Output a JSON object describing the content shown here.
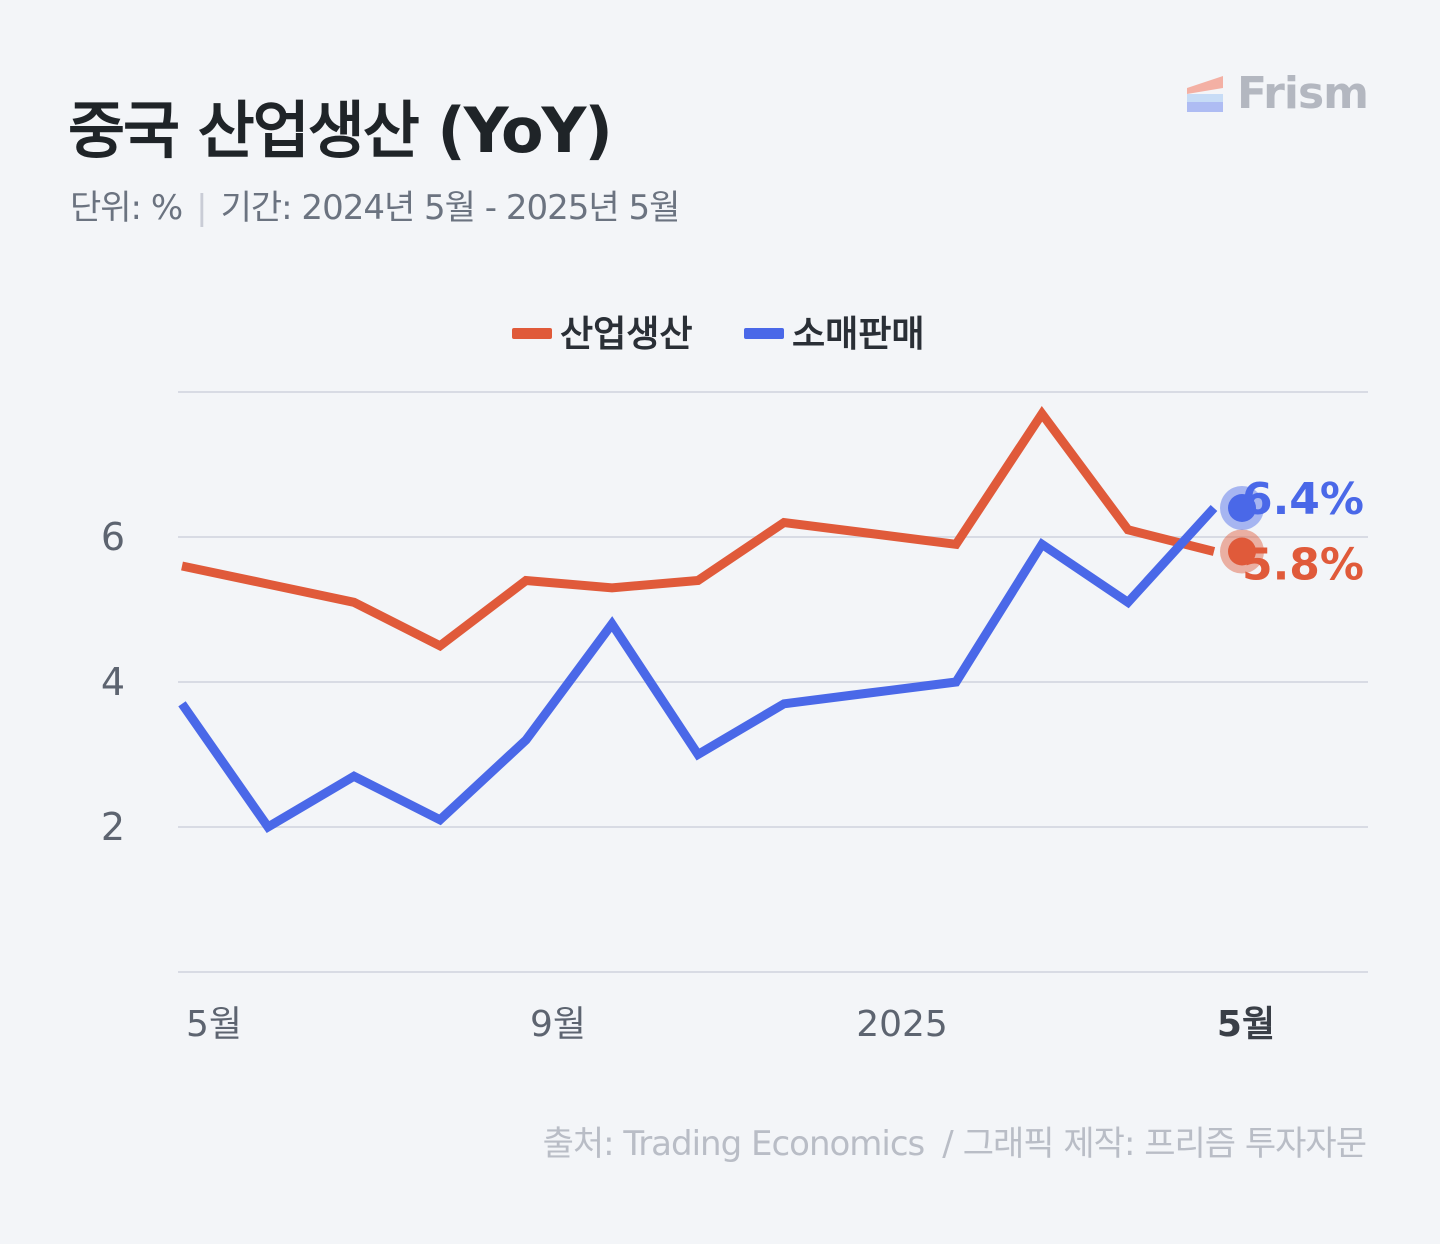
{
  "header": {
    "title": "중국 산업생산 (YoY)",
    "unit": "단위: %",
    "period": "기간: 2024년 5월 - 2025년 5월"
  },
  "brand": {
    "name": "Frism"
  },
  "footer": {
    "source": "출처: Trading Economics",
    "credit": "그래픽 제작: 프리즘 투자자문"
  },
  "chart_data": {
    "type": "line",
    "x": [
      "2024-05",
      "2024-06",
      "2024-07",
      "2024-08",
      "2024-09",
      "2024-10",
      "2024-11",
      "2024-12",
      "2025-01",
      "2025-02",
      "2025-03",
      "2025-04",
      "2025-05"
    ],
    "x_tick_labels": [
      {
        "x": "2024-05",
        "label": "5월"
      },
      {
        "x": "2024-09",
        "label": "9월"
      },
      {
        "x": "2025-01",
        "label": "2025"
      },
      {
        "x": "2025-05",
        "label": "5월",
        "bold": true
      }
    ],
    "y_ticks": [
      2,
      4,
      6
    ],
    "ylim": [
      0,
      8
    ],
    "grid": true,
    "legend_position": "top-center",
    "series": [
      {
        "name": "산업생산",
        "color": "#e05a3a",
        "values": [
          5.6,
          null,
          5.1,
          4.5,
          5.4,
          5.3,
          5.4,
          6.2,
          null,
          5.9,
          7.7,
          6.1,
          5.8
        ],
        "last_label": "5.8%"
      },
      {
        "name": "소매판매",
        "color": "#4a68e8",
        "values": [
          3.7,
          2.0,
          2.7,
          2.1,
          3.2,
          4.8,
          3.0,
          3.7,
          null,
          4.0,
          5.9,
          5.1,
          6.4
        ],
        "last_label": "6.4%"
      }
    ]
  }
}
